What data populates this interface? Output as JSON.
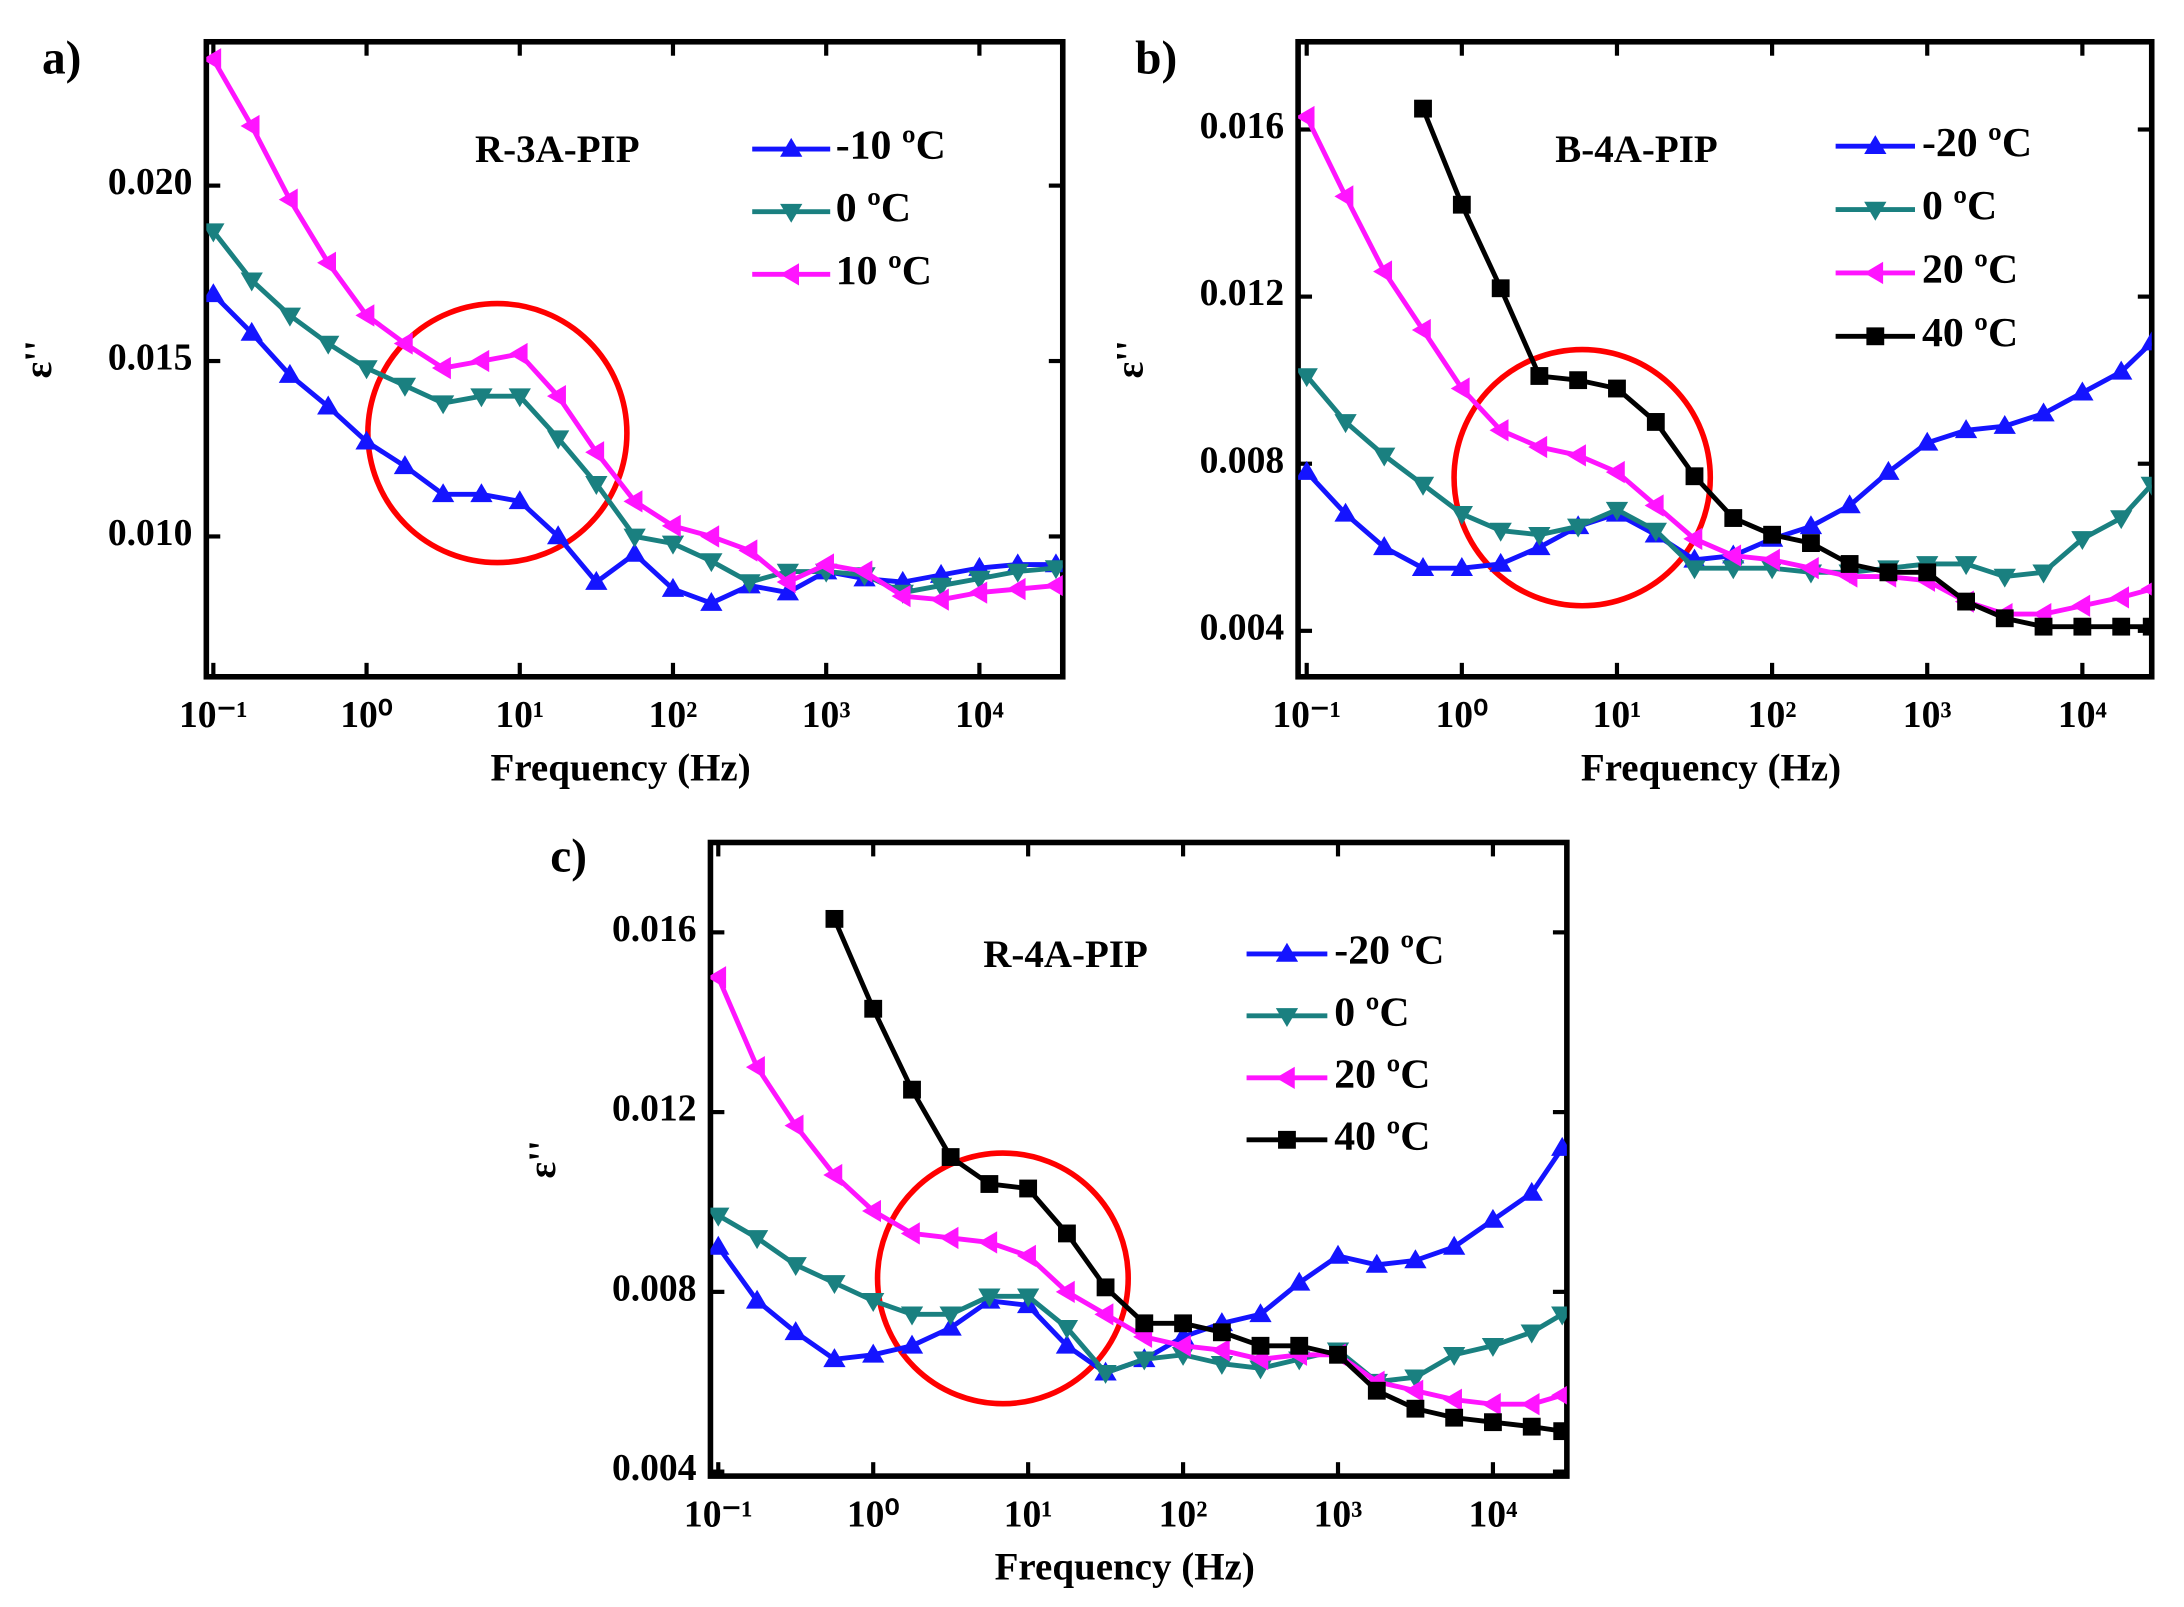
{
  "chart_data": [
    {
      "type": "line",
      "label": "a)",
      "annotation": "R-3A-PIP",
      "xlabel": "Frequency (Hz)",
      "ylabel": "ε''",
      "xscale": "log",
      "xlim": [
        0.09,
        35000
      ],
      "ylim": [
        0.006,
        0.0241
      ],
      "xticks": [
        {
          "value": 0.1,
          "label": "10⁻¹"
        },
        {
          "value": 1,
          "label": "10⁰"
        },
        {
          "value": 10,
          "label": "10¹"
        },
        {
          "value": 100,
          "label": "10²"
        },
        {
          "value": 1000,
          "label": "10³"
        },
        {
          "value": 10000,
          "label": "10⁴"
        }
      ],
      "yticks": [
        {
          "value": 0.01,
          "label": "0.010"
        },
        {
          "value": 0.015,
          "label": "0.015"
        },
        {
          "value": 0.02,
          "label": "0.020"
        }
      ],
      "x": [
        0.1,
        0.178,
        0.316,
        0.562,
        1,
        1.78,
        3.16,
        5.62,
        10,
        17.8,
        31.6,
        56.2,
        100,
        178,
        316,
        562,
        1000,
        1780,
        3160,
        5620,
        10000,
        17800,
        31600
      ],
      "series": [
        {
          "name": "-10 ºC",
          "color": "#1414ff",
          "marker": "up",
          "values": [
            0.0169,
            0.0158,
            0.0146,
            0.0137,
            0.0127,
            0.012,
            0.0112,
            0.0112,
            0.011,
            0.01,
            0.0087,
            0.0095,
            0.0085,
            0.0081,
            0.0086,
            0.0084,
            0.009,
            0.0088,
            0.0087,
            0.0089,
            0.0091,
            0.0092,
            0.0092
          ]
        },
        {
          "name": "0 ºC",
          "color": "#1a8080",
          "marker": "down",
          "values": [
            0.0187,
            0.0173,
            0.0163,
            0.0155,
            0.0148,
            0.0143,
            0.0138,
            0.014,
            0.014,
            0.0128,
            0.0115,
            0.01,
            0.0098,
            0.0093,
            0.0087,
            0.009,
            0.009,
            0.0089,
            0.0084,
            0.0086,
            0.0088,
            0.009,
            0.0091
          ]
        },
        {
          "name": "10 ºC",
          "color": "#ff14ff",
          "marker": "left",
          "values": [
            0.0236,
            0.0217,
            0.0196,
            0.0178,
            0.0163,
            0.0155,
            0.0148,
            0.015,
            0.0152,
            0.014,
            0.0124,
            0.011,
            0.0103,
            0.01,
            0.0096,
            0.0087,
            0.0092,
            0.009,
            0.0083,
            0.0082,
            0.0084,
            0.0085,
            0.0086
          ]
        }
      ]
    },
    {
      "type": "line",
      "label": "b)",
      "annotation": "B-4A-PIP",
      "xlabel": "Frequency (Hz)",
      "ylabel": "ε''",
      "xscale": "log",
      "xlim": [
        0.088,
        28000
      ],
      "ylim": [
        0.0029,
        0.0181
      ],
      "xticks": [
        {
          "value": 0.1,
          "label": "10⁻¹"
        },
        {
          "value": 1,
          "label": "10⁰"
        },
        {
          "value": 10,
          "label": "10¹"
        },
        {
          "value": 100,
          "label": "10²"
        },
        {
          "value": 1000,
          "label": "10³"
        },
        {
          "value": 10000,
          "label": "10⁴"
        }
      ],
      "yticks": [
        0.004,
        0.008,
        0.012,
        0.016
      ],
      "x": [
        0.1,
        0.178,
        0.316,
        0.562,
        1,
        1.78,
        3.16,
        5.62,
        10,
        17.8,
        31.6,
        56.2,
        100,
        178,
        316,
        562,
        1000,
        1780,
        3160,
        5620,
        10000,
        17800,
        28000
      ],
      "series": [
        {
          "name": "-20 ºC",
          "color": "#1414ff",
          "marker": "up",
          "values": [
            0.0078,
            0.0068,
            0.006,
            0.0055,
            0.0055,
            0.0056,
            0.006,
            0.0065,
            0.0068,
            0.0063,
            0.0057,
            0.0058,
            0.0062,
            0.0065,
            0.007,
            0.0078,
            0.0085,
            0.0088,
            0.0089,
            0.0092,
            0.0097,
            0.0102,
            0.0109
          ]
        },
        {
          "name": "0 ºC",
          "color": "#1a8080",
          "marker": "down",
          "values": [
            0.0101,
            0.009,
            0.0082,
            0.0075,
            0.0068,
            0.0064,
            0.0063,
            0.0065,
            0.0069,
            0.0064,
            0.0055,
            0.0055,
            0.0055,
            0.0054,
            0.0054,
            0.0055,
            0.0056,
            0.0056,
            0.0053,
            0.0054,
            0.0062,
            0.0067,
            0.0075
          ]
        },
        {
          "name": "20 ºC",
          "color": "#ff14ff",
          "marker": "left",
          "values": [
            0.0163,
            0.0144,
            0.0126,
            0.0112,
            0.0098,
            0.0088,
            0.0084,
            0.0082,
            0.0078,
            0.007,
            0.0062,
            0.0058,
            0.0057,
            0.0055,
            0.0053,
            0.0053,
            0.0052,
            0.0047,
            0.0044,
            0.0044,
            0.0046,
            0.0048,
            0.005
          ]
        },
        {
          "name": "40 ºC",
          "color": "#000000",
          "marker": "square",
          "values": [
            null,
            null,
            null,
            0.0165,
            0.0142,
            0.0122,
            0.0101,
            0.01,
            0.0098,
            0.009,
            0.0077,
            0.0067,
            0.0063,
            0.0061,
            0.0056,
            0.0054,
            0.0054,
            0.0047,
            0.0043,
            0.0041,
            0.0041,
            0.0041,
            0.0041
          ]
        }
      ]
    },
    {
      "type": "line",
      "label": "c)",
      "annotation": "R-4A-PIP",
      "xlabel": "Frequency (Hz)",
      "ylabel": "ε''",
      "xscale": "log",
      "xlim": [
        0.089,
        30000
      ],
      "ylim": [
        0.0039,
        0.018
      ],
      "xticks": [
        {
          "value": 0.1,
          "label": "10⁻¹"
        },
        {
          "value": 1,
          "label": "10⁰"
        },
        {
          "value": 10,
          "label": "10¹"
        },
        {
          "value": 100,
          "label": "10²"
        },
        {
          "value": 1000,
          "label": "10³"
        },
        {
          "value": 10000,
          "label": "10⁴"
        }
      ],
      "yticks": [
        0.004,
        0.008,
        0.012,
        0.016
      ],
      "x": [
        0.1,
        0.178,
        0.316,
        0.562,
        1,
        1.78,
        3.16,
        5.62,
        10,
        17.8,
        31.6,
        56.2,
        100,
        178,
        316,
        562,
        1000,
        1780,
        3160,
        5620,
        10000,
        17800,
        28000
      ],
      "series": [
        {
          "name": "-20 ºC",
          "color": "#1414ff",
          "marker": "up",
          "values": [
            0.009,
            0.0078,
            0.0071,
            0.0065,
            0.0066,
            0.0068,
            0.0072,
            0.0078,
            0.0077,
            0.0068,
            0.0062,
            0.0065,
            0.007,
            0.0073,
            0.0075,
            0.0082,
            0.0088,
            0.0086,
            0.0087,
            0.009,
            0.0096,
            0.0102,
            0.0112
          ]
        },
        {
          "name": "0 ºC",
          "color": "#1a8080",
          "marker": "down",
          "values": [
            0.0097,
            0.0092,
            0.0086,
            0.0082,
            0.0078,
            0.0075,
            0.0075,
            0.0079,
            0.0079,
            0.0072,
            0.0062,
            0.0065,
            0.0066,
            0.0064,
            0.0063,
            0.0065,
            0.0067,
            0.006,
            0.0061,
            0.0066,
            0.0068,
            0.0071,
            0.0075
          ]
        },
        {
          "name": "20 ºC",
          "color": "#ff14ff",
          "marker": "left",
          "values": [
            0.015,
            0.013,
            0.0117,
            0.0106,
            0.0098,
            0.0093,
            0.0092,
            0.0091,
            0.0088,
            0.008,
            0.0075,
            0.007,
            0.0068,
            0.0067,
            0.0065,
            0.0066,
            0.0066,
            0.006,
            0.0058,
            0.0056,
            0.0055,
            0.0055,
            0.0057
          ]
        },
        {
          "name": "40 ºC",
          "color": "#000000",
          "marker": "square",
          "values": [
            null,
            null,
            null,
            0.0163,
            0.0143,
            0.0125,
            0.011,
            0.0104,
            0.0103,
            0.0093,
            0.0081,
            0.0073,
            0.0073,
            0.0071,
            0.0068,
            0.0068,
            0.0066,
            0.0058,
            0.0054,
            0.0052,
            0.0051,
            0.005,
            0.0049
          ]
        }
      ]
    }
  ]
}
